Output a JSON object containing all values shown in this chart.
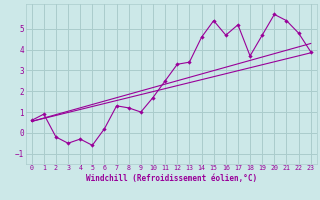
{
  "xlabel": "Windchill (Refroidissement éolien,°C)",
  "ylabel": "",
  "background_color": "#cce8e8",
  "grid_color": "#aacccc",
  "line_color": "#990099",
  "xlim": [
    -0.5,
    23.5
  ],
  "ylim": [
    -1.5,
    6.2
  ],
  "xticks": [
    0,
    1,
    2,
    3,
    4,
    5,
    6,
    7,
    8,
    9,
    10,
    11,
    12,
    13,
    14,
    15,
    16,
    17,
    18,
    19,
    20,
    21,
    22,
    23
  ],
  "yticks": [
    -1,
    0,
    1,
    2,
    3,
    4,
    5
  ],
  "curve1_x": [
    0,
    1,
    2,
    3,
    4,
    5,
    6,
    7,
    8,
    9,
    10,
    11,
    12,
    13,
    14,
    15,
    16,
    17,
    18,
    19,
    20,
    21,
    22,
    23
  ],
  "curve1_y": [
    0.6,
    0.9,
    -0.2,
    -0.5,
    -0.3,
    -0.6,
    0.2,
    1.3,
    1.2,
    1.0,
    1.7,
    2.5,
    3.3,
    3.4,
    4.6,
    5.4,
    4.7,
    5.2,
    3.7,
    4.7,
    5.7,
    5.4,
    4.8,
    3.9
  ],
  "line1_x": [
    0,
    23
  ],
  "line1_y": [
    0.55,
    4.3
  ],
  "line2_x": [
    0,
    23
  ],
  "line2_y": [
    0.55,
    3.85
  ]
}
